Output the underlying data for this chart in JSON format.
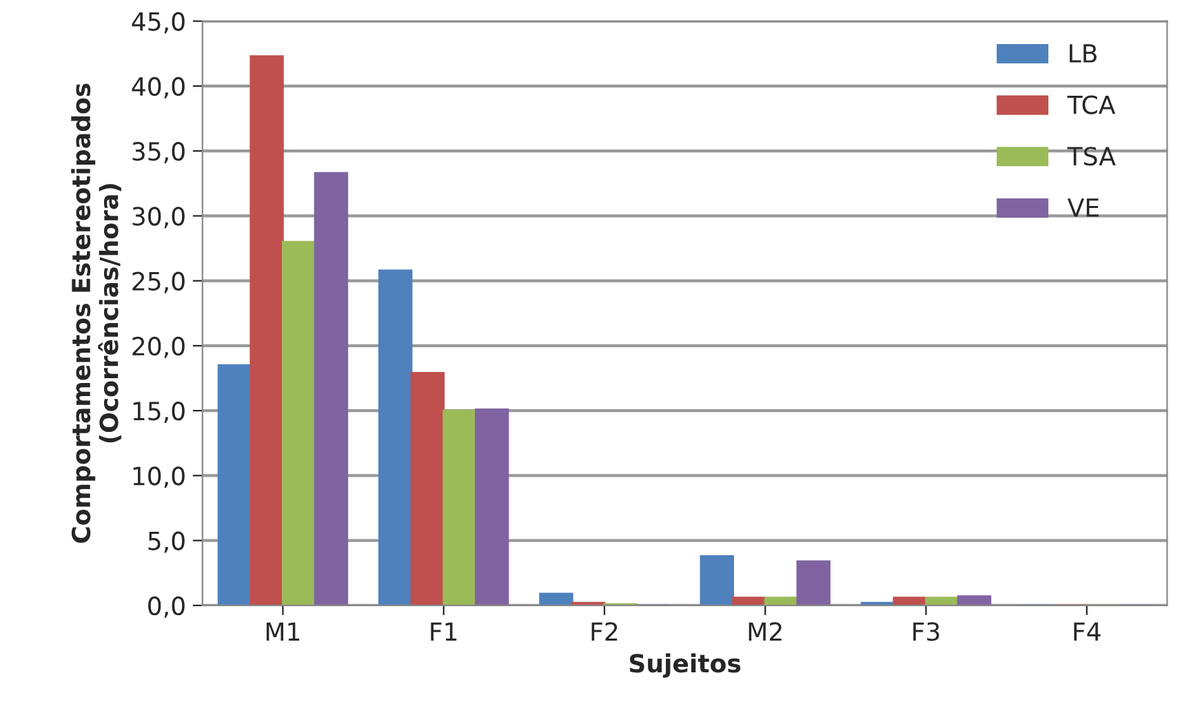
{
  "chart_data": {
    "type": "bar",
    "xlabel": "Sujeitos",
    "ylabel": "Comportamentos Estereotipados\n(Ocorrências/hora)",
    "categories": [
      "M1",
      "F1",
      "F2",
      "M2",
      "F3",
      "F4"
    ],
    "series": [
      {
        "name": "LB",
        "color": "#4f81bd",
        "values": [
          18.5,
          25.8,
          0.9,
          3.8,
          0.2,
          0.0
        ]
      },
      {
        "name": "TCA",
        "color": "#c0504d",
        "values": [
          42.3,
          17.9,
          0.2,
          0.6,
          0.6,
          0.0
        ]
      },
      {
        "name": "TSA",
        "color": "#9bbb59",
        "values": [
          28.0,
          15.0,
          0.1,
          0.6,
          0.6,
          0.0
        ]
      },
      {
        "name": "VE",
        "color": "#8064a2",
        "values": [
          33.3,
          15.1,
          0.0,
          3.4,
          0.7,
          0.0
        ]
      }
    ],
    "ylim": [
      0,
      45
    ],
    "yticks": [
      {
        "value": 0,
        "label": "0,0"
      },
      {
        "value": 5,
        "label": "5,0"
      },
      {
        "value": 10,
        "label": "10,0"
      },
      {
        "value": 15,
        "label": "15,0"
      },
      {
        "value": 20,
        "label": "20,0"
      },
      {
        "value": 25,
        "label": "25,0"
      },
      {
        "value": 30,
        "label": "30,0"
      },
      {
        "value": 35,
        "label": "35,0"
      },
      {
        "value": 40,
        "label": "40,0"
      },
      {
        "value": 45,
        "label": "45,0"
      }
    ],
    "grid": "y",
    "legend": "top right"
  }
}
